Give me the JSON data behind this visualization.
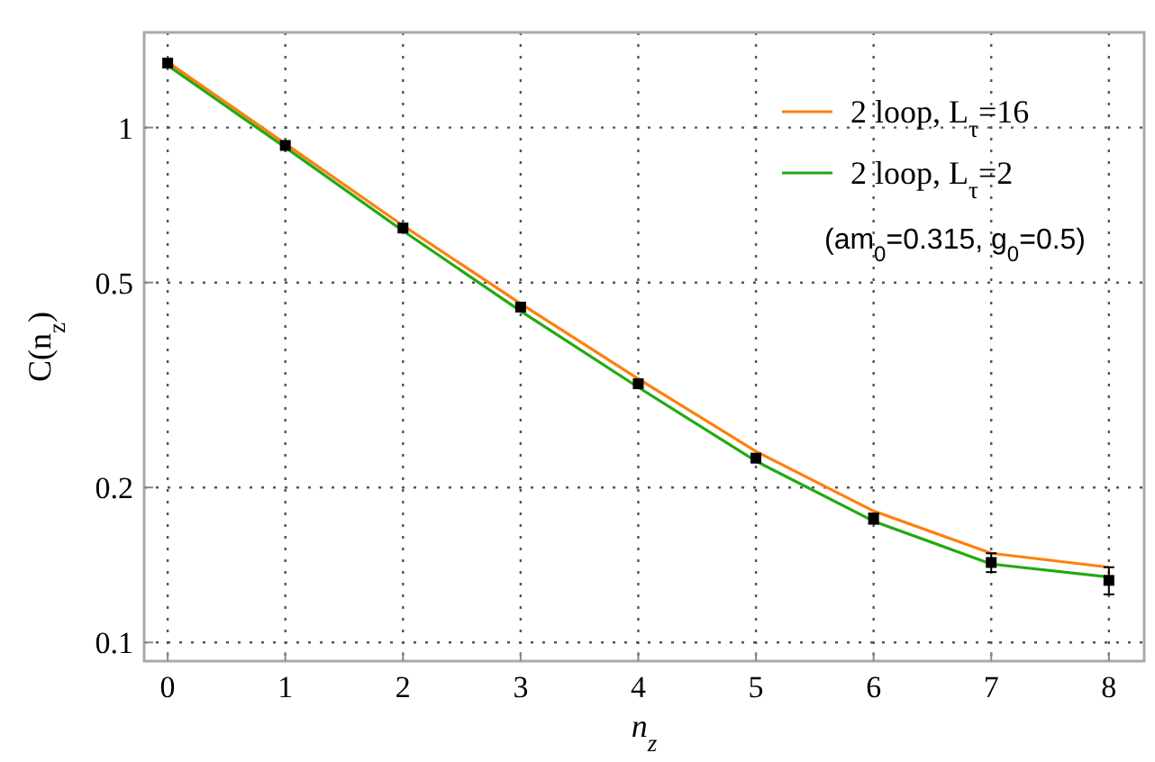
{
  "chart_data": {
    "type": "line",
    "xlabel": "n$_{z}$",
    "ylabel": "C(n$_{z}$)",
    "x": [
      0,
      1,
      2,
      3,
      4,
      5,
      6,
      7,
      8
    ],
    "series": [
      {
        "name": "2 loop, L$_{τ}$=16",
        "color": "#ff7f0e",
        "values": [
          1.34,
          0.93,
          0.645,
          0.455,
          0.325,
          0.235,
          0.18,
          0.149,
          0.14
        ]
      },
      {
        "name": "2 loop, L$_{τ}$=2",
        "color": "#22aa11",
        "values": [
          1.32,
          0.915,
          0.63,
          0.44,
          0.313,
          0.225,
          0.172,
          0.142,
          0.134
        ]
      },
      {
        "type": "scatter",
        "color": "#000000",
        "marker": "square",
        "values": [
          1.334,
          0.923,
          0.638,
          0.448,
          0.318,
          0.228,
          0.174,
          0.143,
          0.132
        ],
        "errors": [
          null,
          null,
          null,
          null,
          null,
          null,
          0.004,
          0.006,
          0.008
        ]
      }
    ],
    "annotations": [
      "(am$_{0}$=0.315, g$_{0}$=0.5)"
    ],
    "log": "y",
    "grid": true,
    "legend": "top right",
    "xlim": [
      -0.2,
      8.3
    ],
    "xticks": [
      0,
      1,
      2,
      3,
      4,
      5,
      6,
      7,
      8
    ],
    "ylim": [
      0.092,
      1.53
    ],
    "yticks": [
      0.1,
      0.2,
      0.5,
      1
    ]
  }
}
